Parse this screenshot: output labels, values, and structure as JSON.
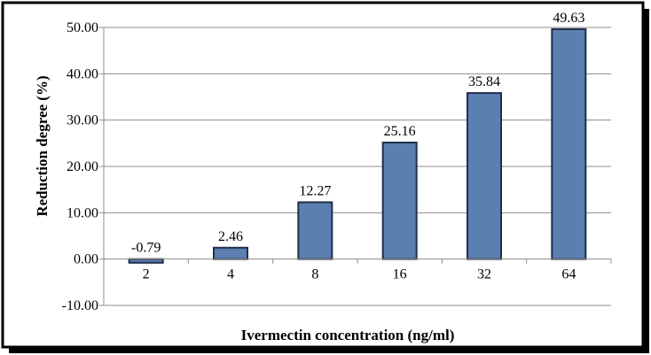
{
  "chart_data": {
    "type": "bar",
    "categories": [
      "2",
      "4",
      "8",
      "16",
      "32",
      "64"
    ],
    "values": [
      -0.79,
      2.46,
      12.27,
      25.16,
      35.84,
      49.63
    ],
    "data_labels": [
      "-0.79",
      "2.46",
      "12.27",
      "25.16",
      "35.84",
      "49.63"
    ],
    "title": "",
    "xlabel": "Ivermectin concentration (ng/ml)",
    "ylabel": "Reduction degree (%)",
    "ylim": [
      -10,
      50
    ],
    "yticks": [
      -10,
      0,
      10,
      20,
      30,
      40,
      50
    ],
    "ytick_labels": [
      "-10.00",
      "0.00",
      "10.00",
      "20.00",
      "30.00",
      "40.00",
      "50.00"
    ],
    "grid": true,
    "legend": "none",
    "colors": {
      "bar_fill": "#5b7fb0",
      "bar_edge": "#1f2f4a",
      "grid": "#8c8c8c",
      "frame": "#000000"
    }
  }
}
